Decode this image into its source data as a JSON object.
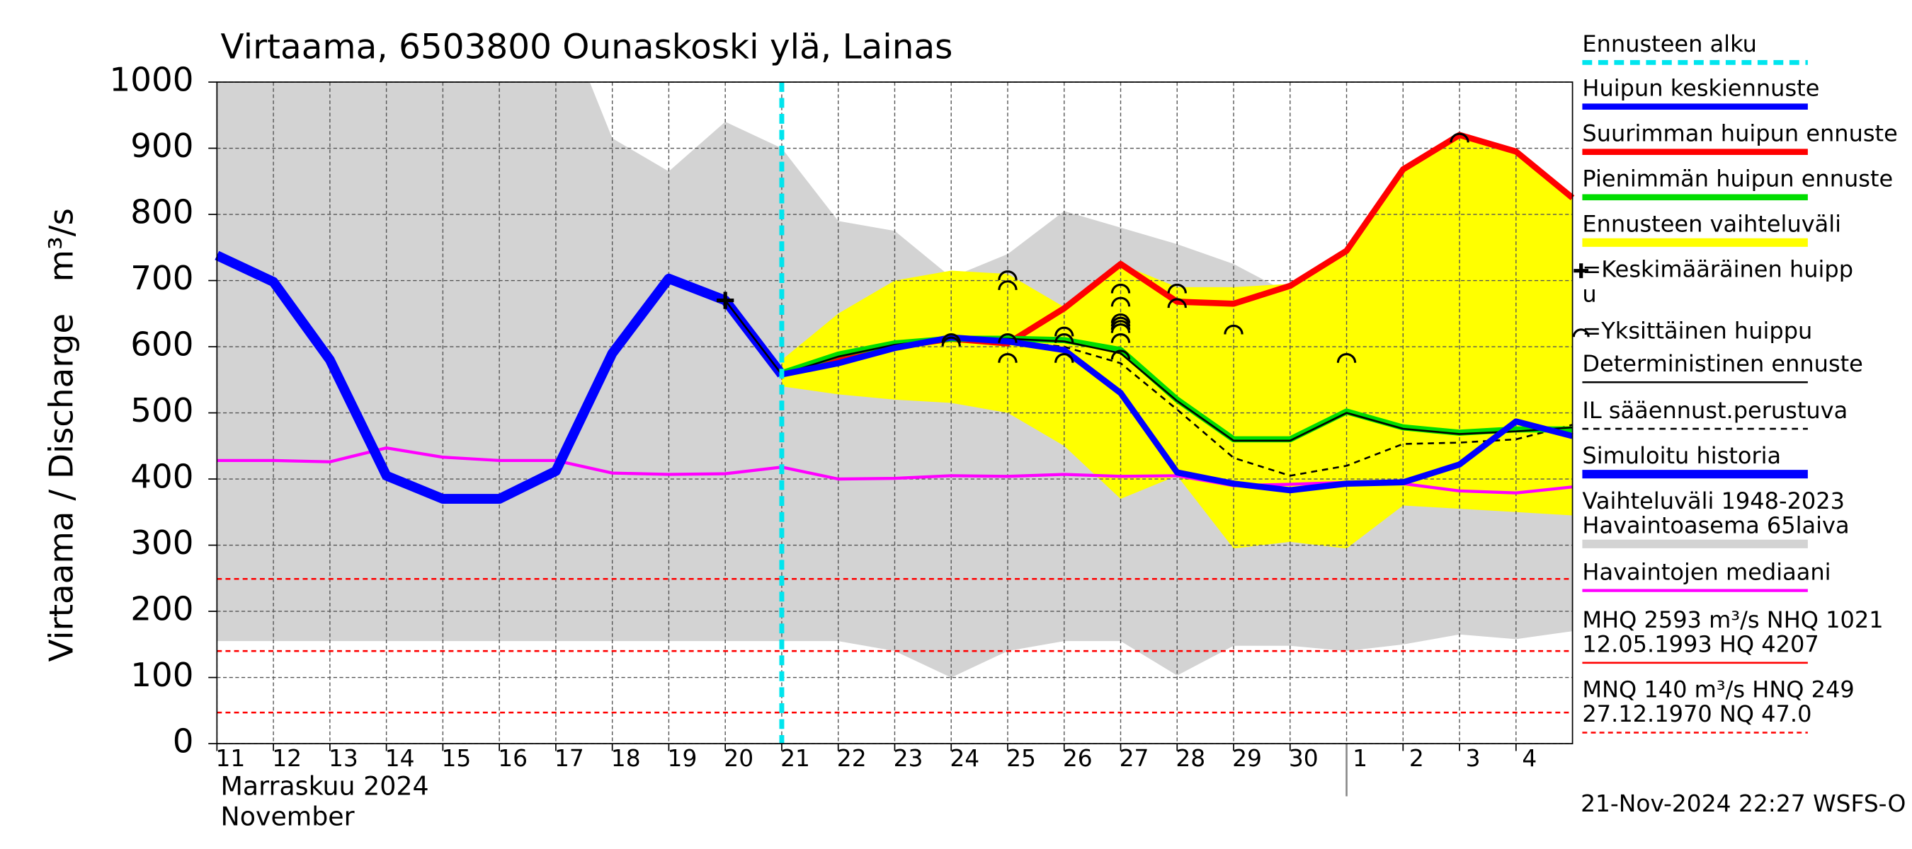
{
  "chart_data": {
    "type": "line",
    "title": "Virtaama, 6503800 Ounaskoski ylä, Lainas",
    "ylabel": "Virtaama / Discharge",
    "yunit": "m³/s",
    "xlabel": [
      "Marraskuu 2024",
      "November"
    ],
    "footer": "21-Nov-2024 22:27 WSFS-O",
    "xlim": [
      0,
      24
    ],
    "xticks": [
      {
        "value": 0,
        "label": "11"
      },
      {
        "value": 1,
        "label": "12"
      },
      {
        "value": 2,
        "label": "13"
      },
      {
        "value": 3,
        "label": "14"
      },
      {
        "value": 4,
        "label": "15"
      },
      {
        "value": 5,
        "label": "16"
      },
      {
        "value": 6,
        "label": "17"
      },
      {
        "value": 7,
        "label": "18"
      },
      {
        "value": 8,
        "label": "19"
      },
      {
        "value": 9,
        "label": "20"
      },
      {
        "value": 10,
        "label": "21"
      },
      {
        "value": 11,
        "label": "22"
      },
      {
        "value": 12,
        "label": "23"
      },
      {
        "value": 13,
        "label": "24"
      },
      {
        "value": 14,
        "label": "25"
      },
      {
        "value": 15,
        "label": "26"
      },
      {
        "value": 16,
        "label": "27"
      },
      {
        "value": 17,
        "label": "28"
      },
      {
        "value": 18,
        "label": "29"
      },
      {
        "value": 19,
        "label": "30"
      },
      {
        "value": 20,
        "label": "1"
      },
      {
        "value": 21,
        "label": "2"
      },
      {
        "value": 22,
        "label": "3"
      },
      {
        "value": 23,
        "label": "4"
      }
    ],
    "month_break": 20,
    "ylim": [
      0,
      1000
    ],
    "yticks": [
      0,
      100,
      200,
      300,
      400,
      500,
      600,
      700,
      800,
      900,
      1000
    ],
    "grid": true,
    "series": [
      {
        "name": [
          "Ennusteen alku"
        ],
        "color": "#00e5ee",
        "style": "vline",
        "x": 10
      },
      {
        "name": [
          "Huipun keskiennuste"
        ],
        "color": "#0000ff",
        "style": "line",
        "width": 5,
        "x": [
          10,
          11,
          12,
          13,
          14,
          15,
          16,
          17,
          18,
          19,
          20,
          21,
          22,
          23,
          24
        ],
        "values": [
          558,
          575,
          598,
          614,
          608,
          595,
          530,
          410,
          393,
          383,
          393,
          395,
          422,
          487,
          465
        ]
      },
      {
        "name": [
          "Suurimman huipun ennuste"
        ],
        "color": "#ff0000",
        "style": "line",
        "width": 5,
        "x": [
          10,
          11,
          12,
          13,
          14,
          15,
          16,
          17,
          18,
          19,
          20,
          21,
          22,
          23,
          24
        ],
        "values": [
          558,
          583,
          600,
          612,
          605,
          658,
          725,
          668,
          665,
          692,
          745,
          868,
          920,
          895,
          825
        ]
      },
      {
        "name": [
          "Pienimmän huipun ennuste"
        ],
        "color": "#00dd00",
        "style": "line",
        "width": 5,
        "x": [
          10,
          11,
          12,
          13,
          14,
          15,
          16,
          17,
          18,
          19,
          20,
          21,
          22,
          23,
          24
        ],
        "values": [
          560,
          588,
          605,
          612,
          612,
          610,
          595,
          520,
          460,
          460,
          502,
          478,
          470,
          475,
          475
        ]
      },
      {
        "name": [
          "Ennusteen vaihteluväli"
        ],
        "color": "#ffff00",
        "style": "band",
        "x": [
          10,
          11,
          12,
          13,
          14,
          15,
          16,
          17,
          18,
          19,
          20,
          21,
          22,
          23,
          24
        ],
        "upper": [
          580,
          650,
          700,
          715,
          710,
          660,
          725,
          690,
          690,
          695,
          745,
          868,
          920,
          895,
          825
        ],
        "lower": [
          540,
          528,
          520,
          515,
          500,
          450,
          370,
          405,
          295,
          305,
          295,
          360,
          355,
          350,
          345
        ]
      },
      {
        "name": [
          "=Keskimääräinen huipp",
          "u"
        ],
        "color": "#000000",
        "style": "plus",
        "x": [
          9
        ],
        "values": [
          670
        ]
      },
      {
        "name": [
          "=Yksittäinen huippu"
        ],
        "color": "#000000",
        "style": "arc",
        "x": [
          13,
          13,
          14,
          14,
          14,
          14,
          15,
          15,
          15,
          16,
          16,
          16,
          16,
          16,
          16,
          16,
          16,
          17,
          17,
          18,
          20,
          22
        ],
        "values": [
          615,
          610,
          710,
          695,
          615,
          585,
          625,
          615,
          585,
          690,
          670,
          645,
          640,
          635,
          630,
          615,
          590,
          690,
          668,
          628,
          585,
          918
        ]
      },
      {
        "name": [
          "Deterministinen ennuste"
        ],
        "color": "#000000",
        "style": "line",
        "width": 1.5,
        "x": [
          9,
          10,
          11,
          12,
          13,
          14,
          15,
          16,
          17,
          18,
          19,
          20,
          21,
          22,
          23,
          24
        ],
        "values": [
          670,
          558,
          585,
          603,
          612,
          612,
          608,
          590,
          518,
          458,
          458,
          500,
          476,
          468,
          472,
          478
        ]
      },
      {
        "name": [
          "IL sääennust.perustuva"
        ],
        "color": "#000000",
        "style": "dashed",
        "width": 1.5,
        "x": [
          10,
          11,
          12,
          13,
          14,
          15,
          16,
          17,
          18,
          19,
          20,
          21,
          22,
          23,
          24
        ],
        "values": [
          558,
          583,
          600,
          612,
          608,
          600,
          575,
          505,
          432,
          405,
          420,
          453,
          455,
          460,
          482
        ]
      },
      {
        "name": [
          "Simuloitu historia"
        ],
        "color": "#0000ff",
        "style": "line",
        "width": 8,
        "x": [
          0,
          1,
          2,
          3,
          4,
          5,
          6,
          7,
          8,
          9,
          10
        ],
        "values": [
          738,
          698,
          580,
          405,
          370,
          370,
          412,
          590,
          703,
          670,
          558
        ]
      },
      {
        "name": [
          "Vaihteluväli 1948-2023",
          " Havaintoasema 65laiva"
        ],
        "color": "#d3d3d3",
        "style": "band",
        "x": [
          0,
          1,
          2,
          3,
          4,
          5,
          6,
          6.6,
          7,
          8,
          9,
          10,
          11,
          12,
          13,
          14,
          15,
          16,
          17,
          18,
          19,
          20,
          21,
          22,
          23,
          24
        ],
        "upper": [
          1000,
          1000,
          1000,
          1000,
          1000,
          1000,
          1000,
          1000,
          915,
          865,
          940,
          900,
          790,
          775,
          705,
          740,
          805,
          780,
          755,
          725,
          680,
          590,
          610,
          555,
          610,
          625
        ],
        "lower": [
          155,
          155,
          155,
          155,
          155,
          155,
          155,
          155,
          155,
          155,
          155,
          155,
          155,
          140,
          100,
          140,
          155,
          155,
          103,
          148,
          148,
          140,
          150,
          165,
          158,
          170
        ]
      },
      {
        "name": [
          "Havaintojen mediaani"
        ],
        "color": "#ff00ff",
        "style": "line",
        "width": 2.5,
        "x": [
          0,
          1,
          2,
          3,
          4,
          5,
          6,
          7,
          8,
          9,
          10,
          11,
          12,
          13,
          14,
          15,
          16,
          17,
          18,
          19,
          20,
          21,
          22,
          23,
          24
        ],
        "values": [
          428,
          428,
          426,
          447,
          433,
          428,
          428,
          409,
          407,
          408,
          418,
          400,
          401,
          405,
          404,
          407,
          404,
          405,
          390,
          392,
          395,
          393,
          382,
          379,
          388
        ]
      },
      {
        "name": [
          "MHQ 2593 m³/s NHQ 1021",
          "12.05.1993 HQ 4207"
        ],
        "color": "#ff0000",
        "style": "ref"
      },
      {
        "name": [
          "MNQ  140 m³/s HNQ  249",
          "27.12.1970 NQ 47.0"
        ],
        "color": "#ff0000",
        "style": "hlines",
        "values": [
          249,
          140,
          47
        ]
      }
    ]
  }
}
